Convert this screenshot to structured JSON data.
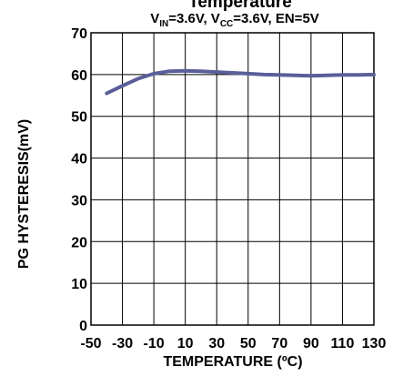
{
  "chart_data": {
    "type": "line",
    "title": "Temperature",
    "subtitle": {
      "v": "V",
      "in_sub": "IN",
      "part1": "=3.6V, V",
      "cc_sub": "CC",
      "part2": "=3.6V, EN=5V"
    },
    "xlabel": "TEMPERATURE (ºC)",
    "ylabel": "PG HYSTERESIS(mV)",
    "xlim": [
      -50,
      130
    ],
    "ylim": [
      0,
      70
    ],
    "xticks": [
      -50,
      -30,
      -10,
      10,
      30,
      50,
      70,
      90,
      110,
      130
    ],
    "yticks": [
      0,
      10,
      20,
      30,
      40,
      50,
      60,
      70
    ],
    "grid": true,
    "line_color": "#5a5f99",
    "series": [
      {
        "x": [
          -40,
          -30,
          -20,
          -10,
          0,
          10,
          20,
          30,
          40,
          50,
          60,
          70,
          80,
          90,
          100,
          110,
          120,
          130
        ],
        "y": [
          55.5,
          57.3,
          59.0,
          60.2,
          60.8,
          60.9,
          60.8,
          60.6,
          60.4,
          60.2,
          60.0,
          59.9,
          59.8,
          59.7,
          59.8,
          59.9,
          59.9,
          60.0
        ]
      }
    ]
  }
}
